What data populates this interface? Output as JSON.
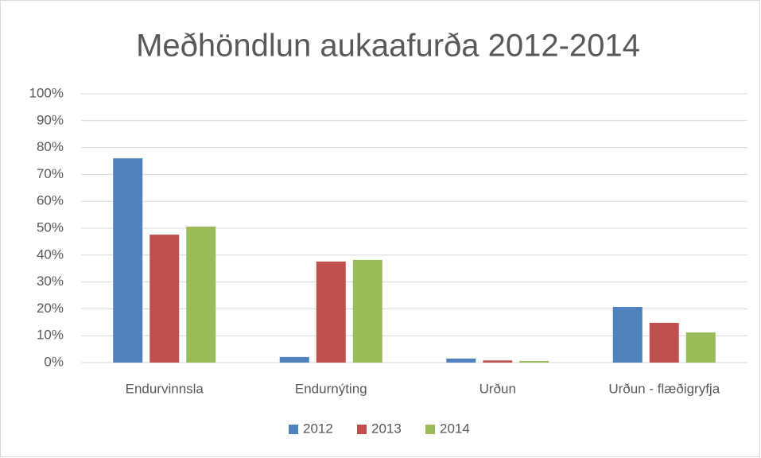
{
  "chart_data": {
    "type": "bar",
    "title": "Meðhöndlun aukaafurða 2012-2014",
    "categories": [
      "Endurvinnsla",
      "Endurnýting",
      "Urðun",
      "Urðun - flæðigryfja"
    ],
    "series": [
      {
        "name": "2012",
        "color": "#4f81bd",
        "values": [
          76.0,
          2.1,
          1.5,
          20.7
        ]
      },
      {
        "name": "2013",
        "color": "#c0504d",
        "values": [
          47.6,
          37.6,
          0.8,
          14.8
        ]
      },
      {
        "name": "2014",
        "color": "#9bbb59",
        "values": [
          50.6,
          38.2,
          0.6,
          11.2
        ]
      }
    ],
    "ylim": [
      0,
      100
    ],
    "yticks": [
      {
        "value": 0,
        "label": "0%"
      },
      {
        "value": 10,
        "label": "10%"
      },
      {
        "value": 20,
        "label": "20%"
      },
      {
        "value": 30,
        "label": "30%"
      },
      {
        "value": 40,
        "label": "40%"
      },
      {
        "value": 50,
        "label": "50%"
      },
      {
        "value": 60,
        "label": "60%"
      },
      {
        "value": 70,
        "label": "70%"
      },
      {
        "value": 80,
        "label": "80%"
      },
      {
        "value": 90,
        "label": "90%"
      },
      {
        "value": 100,
        "label": "100%"
      }
    ],
    "grid": true,
    "legend": "bottom"
  }
}
